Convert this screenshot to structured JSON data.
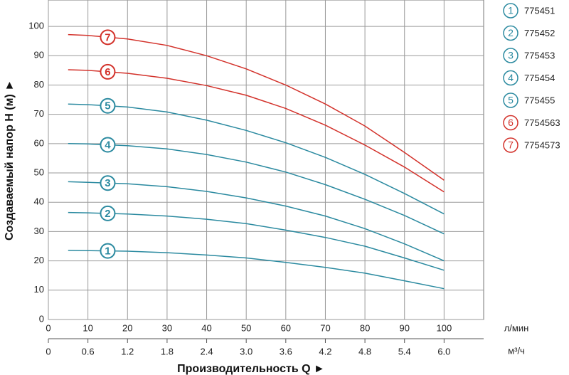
{
  "chart_data": {
    "type": "line",
    "x_label": "Производительность Q ►",
    "y_label": "Создаваемый напор H (м) ►",
    "x_unit": "л/мин",
    "x2_unit": "м³/ч",
    "x": [
      5,
      10,
      20,
      30,
      40,
      50,
      60,
      70,
      80,
      90,
      100
    ],
    "xlim": [
      0,
      110
    ],
    "xticks": [
      0,
      10,
      20,
      30,
      40,
      50,
      60,
      70,
      80,
      90,
      100
    ],
    "x2lim": [
      0,
      6.6
    ],
    "x2ticks": [
      0,
      0.6,
      1.2,
      1.8,
      2.4,
      {
        "value": 3,
        "label": "3.0"
      },
      3.6,
      4.2,
      4.8,
      5.4,
      {
        "value": 6,
        "label": "6.0"
      }
    ],
    "ylim": [
      0,
      109
    ],
    "yticks": [
      0,
      10,
      20,
      30,
      40,
      50,
      60,
      70,
      80,
      90,
      100
    ],
    "grid": true,
    "series": [
      {
        "name": "775451",
        "marker": "1",
        "color": "#2b8aa0",
        "values": [
          23.6,
          23.5,
          23.3,
          22.8,
          22,
          21,
          19.5,
          17.8,
          15.8,
          13.2,
          10.5
        ]
      },
      {
        "name": "775452",
        "marker": "2",
        "color": "#2b8aa0",
        "values": [
          36.5,
          36.4,
          36,
          35.3,
          34.2,
          32.7,
          30.5,
          28,
          25,
          21,
          16.8
        ]
      },
      {
        "name": "775453",
        "marker": "3",
        "color": "#2b8aa0",
        "values": [
          47,
          46.8,
          46.3,
          45.3,
          43.7,
          41.5,
          38.7,
          35.3,
          31,
          25.8,
          20
        ]
      },
      {
        "name": "775454",
        "marker": "4",
        "color": "#2b8aa0",
        "values": [
          60,
          59.9,
          59.3,
          58.2,
          56.3,
          53.7,
          50.3,
          46,
          41,
          35.5,
          29.2
        ]
      },
      {
        "name": "775455",
        "marker": "5",
        "color": "#2b8aa0",
        "values": [
          73.5,
          73.3,
          72.5,
          70.8,
          68,
          64.5,
          60.3,
          55.3,
          49.5,
          43,
          36
        ]
      },
      {
        "name": "7754563",
        "marker": "6",
        "color": "#d3322b",
        "values": [
          85.2,
          85,
          84,
          82.3,
          79.8,
          76.5,
          72,
          66.3,
          59.5,
          52,
          43.5
        ]
      },
      {
        "name": "7754573",
        "marker": "7",
        "color": "#d3322b",
        "values": [
          97.2,
          96.9,
          95.7,
          93.5,
          90,
          85.5,
          80,
          73.5,
          66,
          57,
          47.5
        ]
      }
    ]
  }
}
